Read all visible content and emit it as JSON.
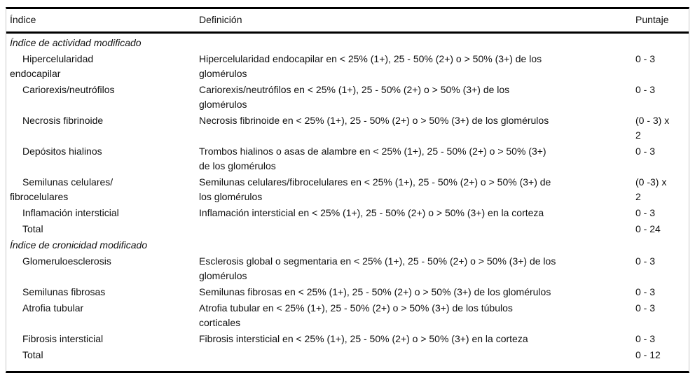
{
  "table": {
    "columns": {
      "index": "Índice",
      "definition": "Definición",
      "score": "Puntaje"
    },
    "sections": [
      {
        "title": "Índice de actividad modificado",
        "rows": [
          {
            "index": "Hipercelularidad\nendocapilar",
            "definition": "Hipercelularidad endocapilar en < 25% (1+), 25 - 50% (2+) o > 50% (3+) de los\nglomérulos",
            "score": "0 - 3"
          },
          {
            "index": "Cariorexis/neutrófilos",
            "definition": "Cariorexis/neutrófilos en < 25% (1+), 25 - 50% (2+) o > 50% (3+) de los\nglomérulos",
            "score": "0 - 3"
          },
          {
            "index": "Necrosis fibrinoide",
            "definition": "Necrosis fibrinoide en < 25% (1+), 25 - 50% (2+) o > 50% (3+) de los glomérulos",
            "score": "(0 - 3) x\n2"
          },
          {
            "index": "Depósitos hialinos",
            "definition": "Trombos hialinos o asas de alambre en < 25% (1+), 25 - 50% (2+) o > 50% (3+)\nde los glomérulos",
            "score": "0 - 3"
          },
          {
            "index": "Semilunas celulares/\nfibrocelulares",
            "definition": "Semilunas celulares/fibrocelulares en < 25% (1+), 25 - 50% (2+) o > 50% (3+) de\nlos glomérulos",
            "score": "(0 -3) x\n2"
          },
          {
            "index": "Inflamación intersticial",
            "definition": "Inflamación intersticial en < 25% (1+), 25 - 50% (2+) o > 50% (3+) en la corteza",
            "score": "0 - 3"
          },
          {
            "index": "Total",
            "definition": "",
            "score": "0 - 24"
          }
        ]
      },
      {
        "title": "Índice de cronicidad modificado",
        "rows": [
          {
            "index": "Glomeruloesclerosis",
            "definition": "Esclerosis global o segmentaria en < 25% (1+), 25 - 50% (2+) o > 50% (3+) de los\nglomérulos",
            "score": "0 - 3"
          },
          {
            "index": "Semilunas fibrosas",
            "definition": "Semilunas fibrosas en < 25% (1+), 25 - 50% (2+) o > 50% (3+) de los glomérulos",
            "score": "0 - 3"
          },
          {
            "index": "Atrofia tubular",
            "definition": "Atrofia tubular en < 25% (1+), 25 - 50% (2+) o > 50% (3+) de los túbulos\ncorticales",
            "score": "0 - 3"
          },
          {
            "index": "Fibrosis intersticial",
            "definition": "Fibrosis intersticial en < 25% (1+), 25 - 50% (2+) o > 50% (3+) en la corteza",
            "score": "0 - 3"
          },
          {
            "index": "Total",
            "definition": "",
            "score": "0 - 12"
          }
        ]
      }
    ]
  }
}
